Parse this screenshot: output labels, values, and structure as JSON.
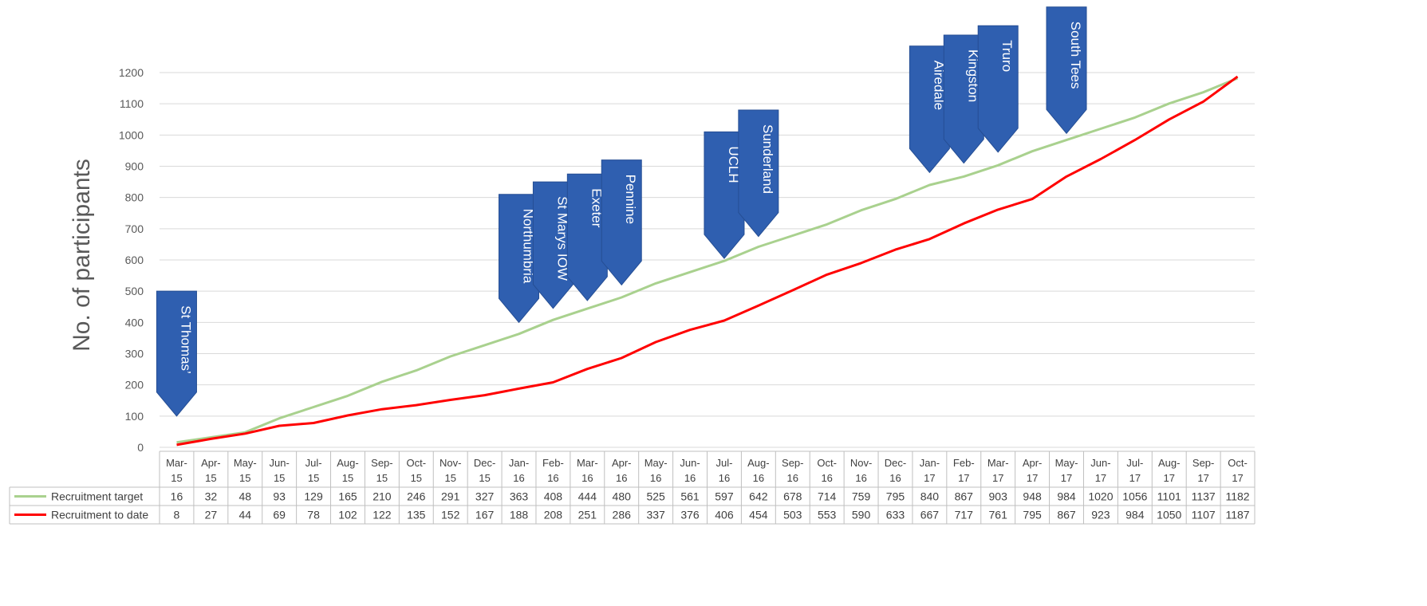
{
  "chart_data": {
    "type": "line",
    "ylabel": "No. of participants",
    "ylim": [
      0,
      1200
    ],
    "yticks": [
      "0",
      "100",
      "200",
      "300",
      "400",
      "500",
      "600",
      "700",
      "800",
      "900",
      "1000",
      "1100",
      "1200"
    ],
    "grid": true,
    "categories": [
      [
        "Mar-",
        "15"
      ],
      [
        "Apr-",
        "15"
      ],
      [
        "May-",
        "15"
      ],
      [
        "Jun-",
        "15"
      ],
      [
        "Jul-",
        "15"
      ],
      [
        "Aug-",
        "15"
      ],
      [
        "Sep-",
        "15"
      ],
      [
        "Oct-",
        "15"
      ],
      [
        "Nov-",
        "15"
      ],
      [
        "Dec-",
        "15"
      ],
      [
        "Jan-",
        "16"
      ],
      [
        "Feb-",
        "16"
      ],
      [
        "Mar-",
        "16"
      ],
      [
        "Apr-",
        "16"
      ],
      [
        "May-",
        "16"
      ],
      [
        "Jun-",
        "16"
      ],
      [
        "Jul-",
        "16"
      ],
      [
        "Aug-",
        "16"
      ],
      [
        "Sep-",
        "16"
      ],
      [
        "Oct-",
        "16"
      ],
      [
        "Nov-",
        "16"
      ],
      [
        "Dec-",
        "16"
      ],
      [
        "Jan-",
        "17"
      ],
      [
        "Feb-",
        "17"
      ],
      [
        "Mar-",
        "17"
      ],
      [
        "Apr-",
        "17"
      ],
      [
        "May-",
        "17"
      ],
      [
        "Jun-",
        "17"
      ],
      [
        "Jul-",
        "17"
      ],
      [
        "Aug-",
        "17"
      ],
      [
        "Sep-",
        "17"
      ],
      [
        "Oct-",
        "17"
      ]
    ],
    "series": [
      {
        "name": "Recruitment target",
        "color": "#a9d18e",
        "values": [
          16,
          32,
          48,
          93,
          129,
          165,
          210,
          246,
          291,
          327,
          363,
          408,
          444,
          480,
          525,
          561,
          597,
          642,
          678,
          714,
          759,
          795,
          840,
          867,
          903,
          948,
          984,
          1020,
          1056,
          1101,
          1137,
          1182
        ]
      },
      {
        "name": "Recruitment to date",
        "color": "#ff0000",
        "values": [
          8,
          27,
          44,
          69,
          78,
          102,
          122,
          135,
          152,
          167,
          188,
          208,
          251,
          286,
          337,
          376,
          406,
          454,
          503,
          553,
          590,
          633,
          667,
          717,
          761,
          795,
          867,
          923,
          984,
          1050,
          1107,
          1187
        ]
      }
    ],
    "annotations": [
      {
        "label": "St Thomas’",
        "index": 0,
        "top": 500,
        "bottom": 100
      },
      {
        "label": "Northumbria",
        "index": 10,
        "top": 810,
        "bottom": 400
      },
      {
        "label": "St Marys IOW",
        "index": 11,
        "top": 850,
        "bottom": 445
      },
      {
        "label": "Exeter",
        "index": 12,
        "top": 875,
        "bottom": 470
      },
      {
        "label": "Pennine",
        "index": 13,
        "top": 920,
        "bottom": 520
      },
      {
        "label": "UCLH",
        "index": 16,
        "top": 1010,
        "bottom": 605
      },
      {
        "label": "Sunderland",
        "index": 17,
        "top": 1080,
        "bottom": 675
      },
      {
        "label": "Airedale",
        "index": 22,
        "top": 1285,
        "bottom": 880
      },
      {
        "label": "Kingston",
        "index": 23,
        "top": 1320,
        "bottom": 910
      },
      {
        "label": "Truro",
        "index": 24,
        "top": 1350,
        "bottom": 945
      },
      {
        "label": "South Tees",
        "index": 26,
        "top": 1410,
        "bottom": 1005
      }
    ],
    "flag_color": "#2f5fb0"
  }
}
